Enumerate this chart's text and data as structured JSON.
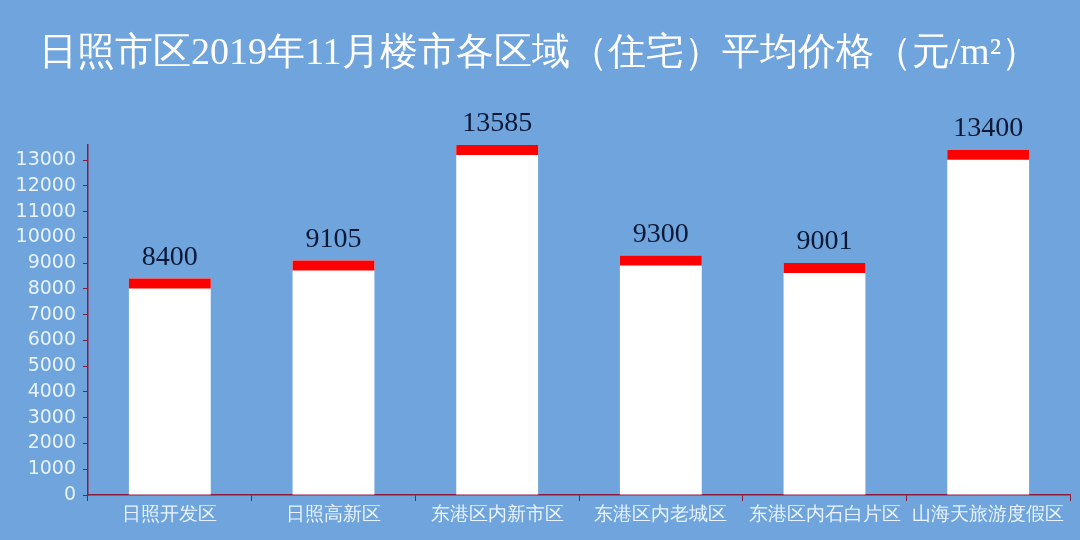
{
  "chart_data": {
    "type": "bar",
    "title": "日照市区2019年11月楼市各区域（住宅）平均价格（元/m²）",
    "categories": [
      "日照开发区",
      "日照高新区",
      "东港区内新市区",
      "东港区内老城区",
      "东港区内石白片区",
      "山海天旅游度假区"
    ],
    "values": [
      8400,
      9105,
      13585,
      9300,
      9001,
      13400
    ],
    "color": "#ffffff",
    "ylim": [
      0,
      13600
    ],
    "yticks": [
      0,
      1000,
      2000,
      3000,
      4000,
      5000,
      6000,
      7000,
      8000,
      9000,
      10000,
      11000,
      12000,
      13000
    ],
    "data_labels": true
  }
}
